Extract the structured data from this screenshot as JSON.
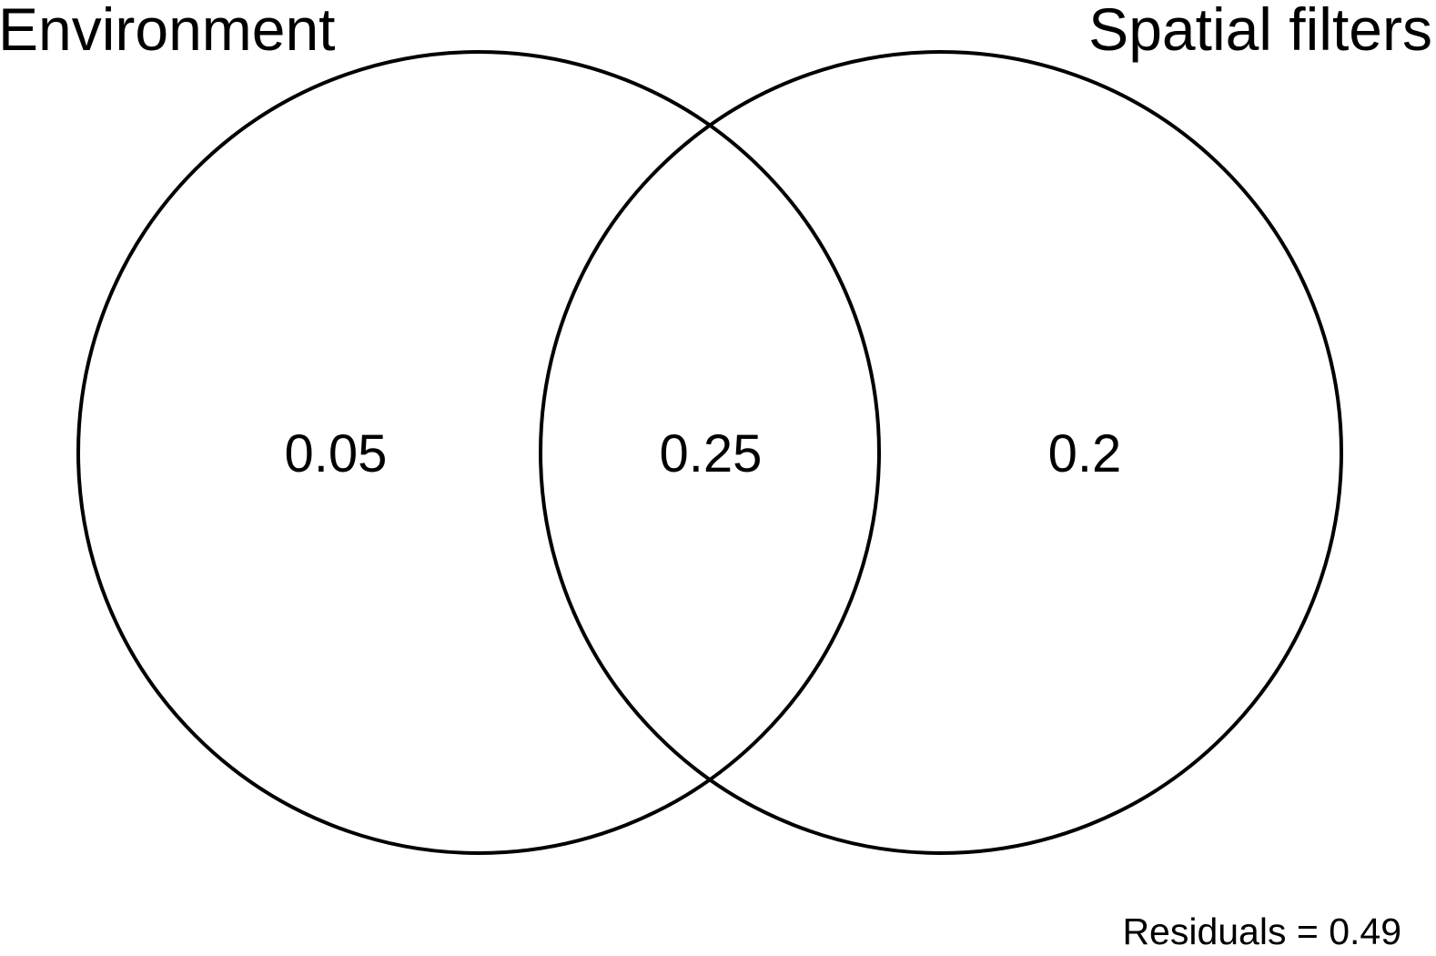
{
  "sets": {
    "left": {
      "label": "Environment"
    },
    "right": {
      "label": "Spatial filters"
    }
  },
  "regions": {
    "left_only": "0.05",
    "intersection": "0.25",
    "right_only": "0.2"
  },
  "residuals": {
    "label": "Residuals",
    "value": "0.49",
    "text": "Residuals = 0.49"
  },
  "colors": {
    "stroke": "#000000",
    "background": "#ffffff"
  }
}
